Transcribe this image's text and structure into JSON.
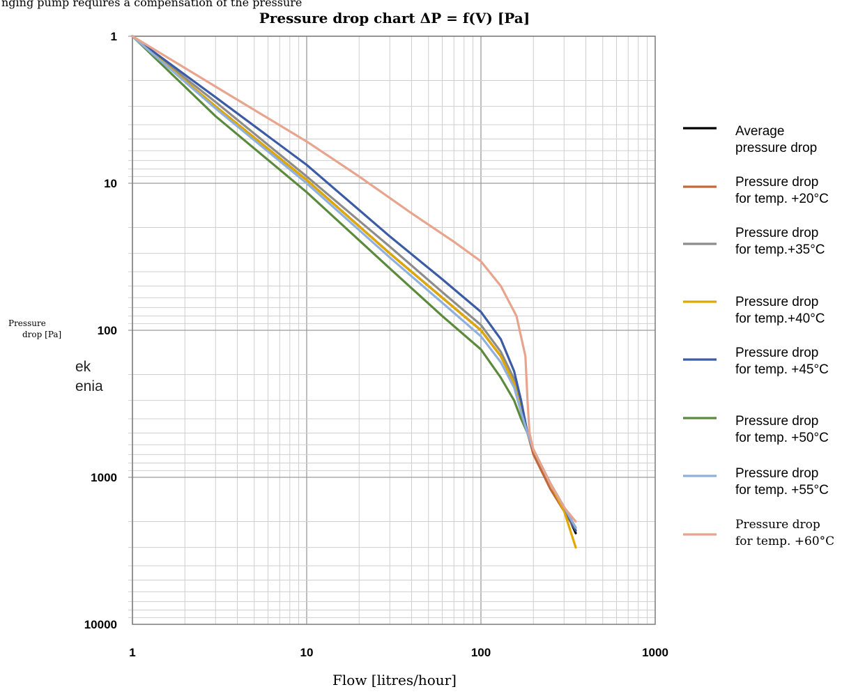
{
  "header_cropped": "nging pump requires a compensation of the pressure",
  "chart_data": {
    "type": "line",
    "title": "Pressure drop chart ΔP = f(V) [Pa]",
    "xlabel": "Flow [litres/hour]",
    "ylabel": [
      "Pressure",
      "drop [Pa]"
    ],
    "ylabel_artifact": [
      "ek",
      "enia"
    ],
    "x_scale": "log",
    "y_scale": "log",
    "y_inverted": true,
    "xlim": [
      1,
      1000
    ],
    "ylim": [
      1,
      10000
    ],
    "x_ticks": [
      "1",
      "10",
      "100",
      "1000"
    ],
    "y_ticks": [
      "1",
      "10",
      "100",
      "1000",
      "10000"
    ],
    "grid": true,
    "legend_position": "right",
    "series": [
      {
        "name": "Average pressure drop",
        "color": "#000000",
        "x": [
          1,
          3,
          10,
          30,
          60,
          100,
          130,
          155,
          170,
          185,
          200,
          250,
          300,
          350
        ],
        "y": [
          1,
          3,
          9.5,
          30,
          60,
          100,
          150,
          230,
          350,
          500,
          650,
          1100,
          1600,
          2400
        ]
      },
      {
        "name": "Pressure drop for temp. +20°C",
        "color": "#c0683a",
        "x": [
          1,
          3,
          10,
          30,
          60,
          100,
          130,
          155,
          170,
          185,
          200,
          250,
          300,
          350
        ],
        "y": [
          1,
          3,
          9.5,
          30,
          60,
          100,
          150,
          230,
          350,
          500,
          700,
          1200,
          1700,
          2300
        ]
      },
      {
        "name": "Pressure drop for temp.+35°C",
        "color": "#8c8c8c",
        "x": [
          1,
          3,
          10,
          30,
          60,
          100,
          130,
          155,
          170,
          185,
          200,
          250,
          300,
          350
        ],
        "y": [
          1,
          2.8,
          9,
          27,
          55,
          92,
          140,
          215,
          330,
          500,
          650,
          1100,
          1600,
          2200
        ]
      },
      {
        "name": "Pressure drop for temp.+40°C",
        "color": "#e0a800",
        "x": [
          1,
          3,
          10,
          30,
          60,
          100,
          130,
          155,
          170,
          185,
          200,
          250,
          300,
          350
        ],
        "y": [
          1,
          3,
          9.5,
          30,
          60,
          100,
          150,
          230,
          350,
          500,
          650,
          1100,
          1700,
          3000
        ]
      },
      {
        "name": "Pressure drop for temp. +45°C",
        "color": "#3b5ba5",
        "x": [
          1,
          3,
          10,
          30,
          60,
          100,
          130,
          155,
          170,
          185,
          200,
          250,
          300,
          350
        ],
        "y": [
          1,
          2.6,
          7.5,
          23,
          45,
          75,
          115,
          190,
          300,
          500,
          650,
          1100,
          1600,
          2300
        ]
      },
      {
        "name": "Pressure drop for temp. +50°C",
        "color": "#5b8a3c",
        "x": [
          1,
          3,
          10,
          30,
          60,
          100,
          130,
          155,
          170,
          185,
          200,
          250,
          300,
          350
        ],
        "y": [
          1,
          3.5,
          11.5,
          38,
          80,
          135,
          210,
          300,
          400,
          500,
          650,
          1100,
          1600,
          2200
        ]
      },
      {
        "name": "Pressure drop for temp. +55°C",
        "color": "#8fb0dd",
        "x": [
          1,
          3,
          10,
          30,
          60,
          100,
          130,
          155,
          170,
          185,
          200,
          250,
          300,
          350
        ],
        "y": [
          1,
          3.1,
          10,
          32,
          65,
          110,
          165,
          245,
          360,
          500,
          650,
          1100,
          1600,
          2200
        ]
      },
      {
        "name": "Pressure drop for temp. +60°C",
        "color": "#e8a48c",
        "x": [
          1,
          3,
          10,
          20,
          40,
          70,
          100,
          130,
          160,
          180,
          185,
          190,
          200,
          250,
          300,
          350
        ],
        "y": [
          1,
          2.2,
          5.2,
          9,
          16,
          25,
          34,
          50,
          80,
          150,
          300,
          500,
          650,
          1100,
          1600,
          2000
        ]
      }
    ]
  },
  "legend": {
    "items": [
      {
        "lines": [
          "Average",
          "pressure drop"
        ]
      },
      {
        "lines": [
          "Pressure drop",
          "for temp. +20°C"
        ]
      },
      {
        "lines": [
          "Pressure drop",
          "for temp.+35°C"
        ]
      },
      {
        "lines": [
          "Pressure drop",
          "for temp.+40°C"
        ]
      },
      {
        "lines": [
          "Pressure drop",
          "for temp. +45°C"
        ]
      },
      {
        "lines": [
          "Pressure drop",
          "for temp. +50°C"
        ]
      },
      {
        "lines": [
          "Pressure drop",
          "for temp. +55°C"
        ]
      },
      {
        "lines": [
          "Pressure drop",
          "for temp. +60°C"
        ]
      }
    ]
  }
}
